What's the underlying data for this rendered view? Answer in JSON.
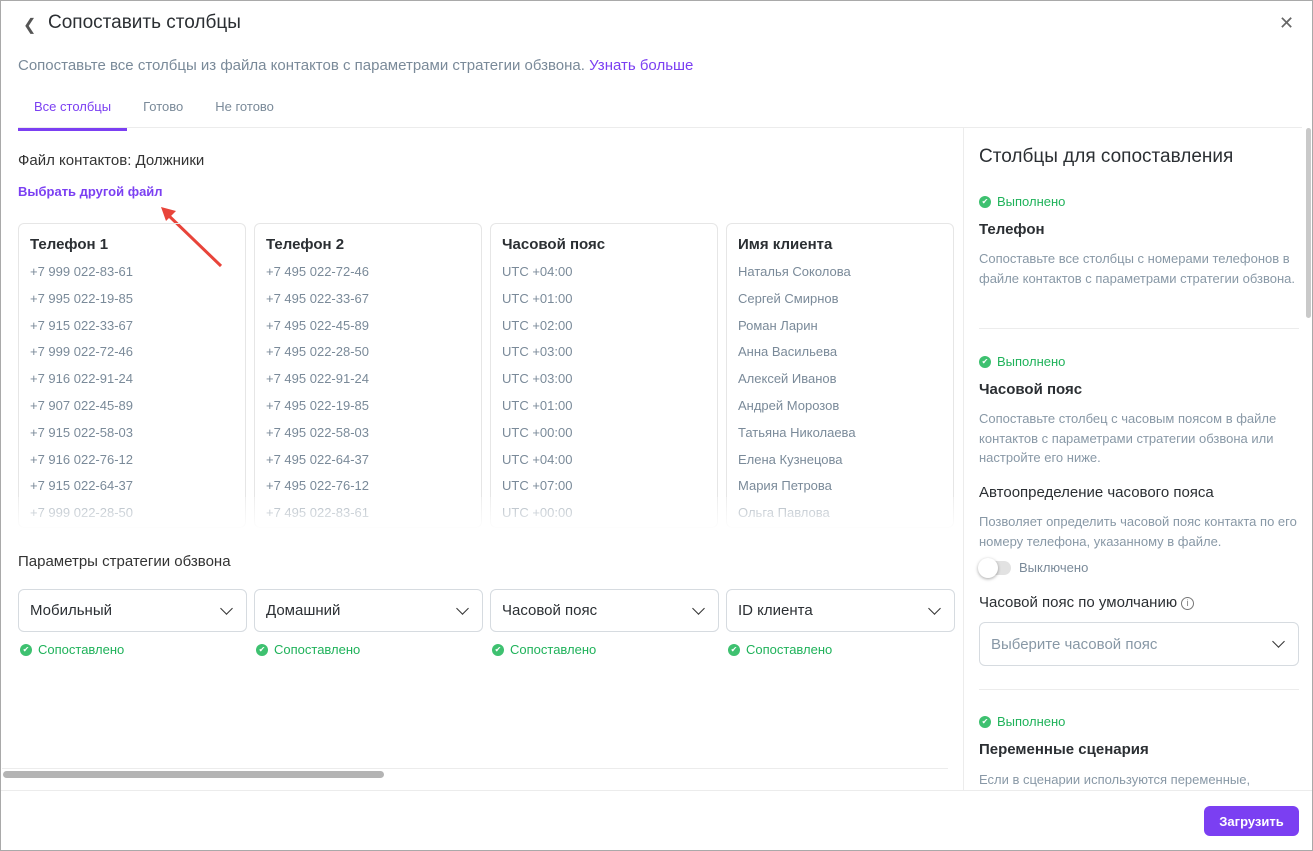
{
  "header": {
    "title": "Сопоставить столбцы",
    "subtitle": "Сопоставьте все столбцы из файла контактов с параметрами стратегии обзвона.",
    "learn_more": "Узнать больше"
  },
  "tabs": [
    {
      "label": "Все столбцы",
      "active": true
    },
    {
      "label": "Готово"
    },
    {
      "label": "Не готово"
    }
  ],
  "file": {
    "label": "Файл контактов: Должники",
    "change_link": "Выбрать другой файл"
  },
  "columns": [
    {
      "header": "Телефон 1",
      "values": [
        "+7 999 022-83-61",
        "+7 995 022-19-85",
        "+7 915 022-33-67",
        "+7 999 022-72-46",
        "+7 916 022-91-24",
        "+7 907 022-45-89",
        "+7 915 022-58-03",
        "+7 916 022-76-12",
        "+7 915 022-64-37",
        "+7 999 022-28-50"
      ]
    },
    {
      "header": "Телефон 2",
      "values": [
        "+7 495 022-72-46",
        "+7 495 022-33-67",
        "+7 495 022-45-89",
        "+7 495 022-28-50",
        "+7 495 022-91-24",
        "+7 495 022-19-85",
        "+7 495 022-58-03",
        "+7 495 022-64-37",
        "+7 495 022-76-12",
        "+7 495 022-83-61"
      ]
    },
    {
      "header": "Часовой пояс",
      "values": [
        "UTC +04:00",
        "UTC +01:00",
        "UTC +02:00",
        "UTC +03:00",
        "UTC +03:00",
        "UTC +01:00",
        "UTC +00:00",
        "UTC +04:00",
        "UTC +07:00",
        "UTC +00:00"
      ]
    },
    {
      "header": "Имя клиента",
      "values": [
        "Наталья Соколова",
        "Сергей Смирнов",
        "Роман Ларин",
        "Анна Васильева",
        "Алексей Иванов",
        "Андрей Морозов",
        "Татьяна Николаева",
        "Елена Кузнецова",
        "Мария Петрова",
        "Ольга Павлова"
      ]
    }
  ],
  "params": {
    "title": "Параметры стратегии обзвона",
    "selects": [
      {
        "value": "Мобильный",
        "status": "Сопоставлено"
      },
      {
        "value": "Домашний",
        "status": "Сопоставлено"
      },
      {
        "value": "Часовой пояс",
        "status": "Сопоставлено"
      },
      {
        "value": "ID клиента",
        "status": "Сопоставлено"
      }
    ]
  },
  "right": {
    "title": "Столбцы для сопоставления",
    "sections": [
      {
        "status": "Выполнено",
        "title": "Телефон",
        "desc": "Сопоставьте все столбцы с номерами телефонов в файле контактов с параметрами стратегии обзвона."
      },
      {
        "status": "Выполнено",
        "title": "Часовой пояс",
        "desc": "Сопоставьте столбец с часовым поясом в файле контактов с параметрами стратегии обзвона или настройте его ниже."
      },
      {
        "status": "Выполнено",
        "title": "Переменные сценария",
        "desc": "Если в сценарии используются переменные,"
      }
    ],
    "auto": {
      "title": "Автоопределение часового пояса",
      "desc": "Позволяет определить часовой пояс контакта по его номеру телефона, указанному в файле.",
      "toggle_label": "Выключено",
      "toggle_on": false
    },
    "default_tz": {
      "label": "Часовой пояс по умолчанию",
      "placeholder": "Выберите часовой пояс"
    }
  },
  "footer": {
    "upload": "Загрузить"
  },
  "colors": {
    "accent": "#7b3ff2",
    "success": "#1fb25a"
  }
}
